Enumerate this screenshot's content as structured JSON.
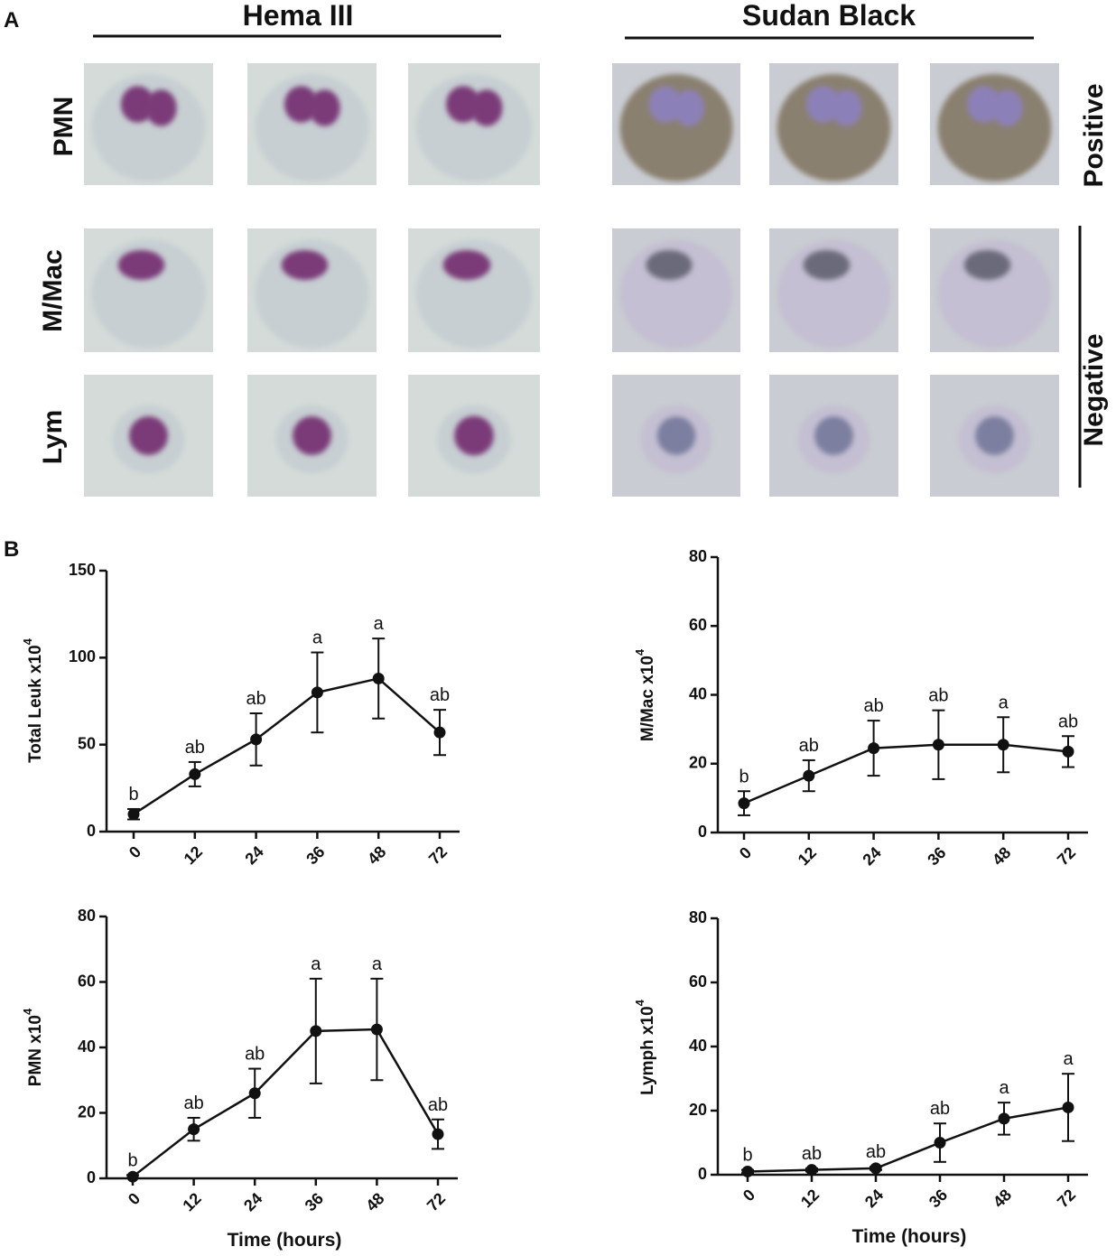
{
  "panel_a": {
    "label": "A",
    "stain_1": "Hema III",
    "stain_2": "Sudan Black",
    "rows": [
      "PMN",
      "M/Mac",
      "Lym"
    ],
    "positive": "Positive",
    "negative": "Negative"
  },
  "panel_b": {
    "label": "B"
  },
  "chart_data": [
    {
      "type": "line",
      "ylabel": "Total Leuk x10",
      "ylabel_sup": "4",
      "categories": [
        "0",
        "12",
        "24",
        "36",
        "48",
        "72"
      ],
      "values": [
        10,
        33,
        53,
        80,
        88,
        57
      ],
      "errors": [
        3,
        7,
        15,
        23,
        23,
        13
      ],
      "annotations": [
        "b",
        "ab",
        "ab",
        "a",
        "a",
        "ab"
      ],
      "ylim": [
        0,
        150
      ],
      "yticks": [
        0,
        50,
        100,
        150
      ],
      "color": "#111111"
    },
    {
      "type": "line",
      "ylabel": "M/Mac x10",
      "ylabel_sup": "4",
      "categories": [
        "0",
        "12",
        "24",
        "36",
        "48",
        "72"
      ],
      "values": [
        8.5,
        16.5,
        24.5,
        25.5,
        25.5,
        23.5
      ],
      "errors": [
        3.5,
        4.5,
        8,
        10,
        8,
        4.5
      ],
      "annotations": [
        "b",
        "ab",
        "ab",
        "ab",
        "a",
        "ab"
      ],
      "ylim": [
        0,
        80
      ],
      "yticks": [
        0,
        20,
        40,
        60,
        80
      ],
      "color": "#111111"
    },
    {
      "type": "line",
      "ylabel": "PMN x10",
      "ylabel_sup": "4",
      "xlabel": "Time (hours)",
      "categories": [
        "0",
        "12",
        "24",
        "36",
        "48",
        "72"
      ],
      "values": [
        0.5,
        15,
        26,
        45,
        45.5,
        13.5
      ],
      "errors": [
        0.5,
        3.5,
        7.5,
        16,
        15.5,
        4.5
      ],
      "annotations": [
        "b",
        "ab",
        "ab",
        "a",
        "a",
        "ab"
      ],
      "ylim": [
        0,
        80
      ],
      "yticks": [
        0,
        20,
        40,
        60,
        80
      ],
      "color": "#111111"
    },
    {
      "type": "line",
      "ylabel": "Lymph x10",
      "ylabel_sup": "4",
      "xlabel": "Time (hours)",
      "categories": [
        "0",
        "12",
        "24",
        "36",
        "48",
        "72"
      ],
      "values": [
        1,
        1.5,
        2,
        10,
        17.5,
        21
      ],
      "errors": [
        0.5,
        0.5,
        0.5,
        6,
        5,
        10.5
      ],
      "annotations": [
        "b",
        "ab",
        "ab",
        "ab",
        "a",
        "a"
      ],
      "ylim": [
        0,
        80
      ],
      "yticks": [
        0,
        20,
        40,
        60,
        80
      ],
      "color": "#111111"
    }
  ]
}
